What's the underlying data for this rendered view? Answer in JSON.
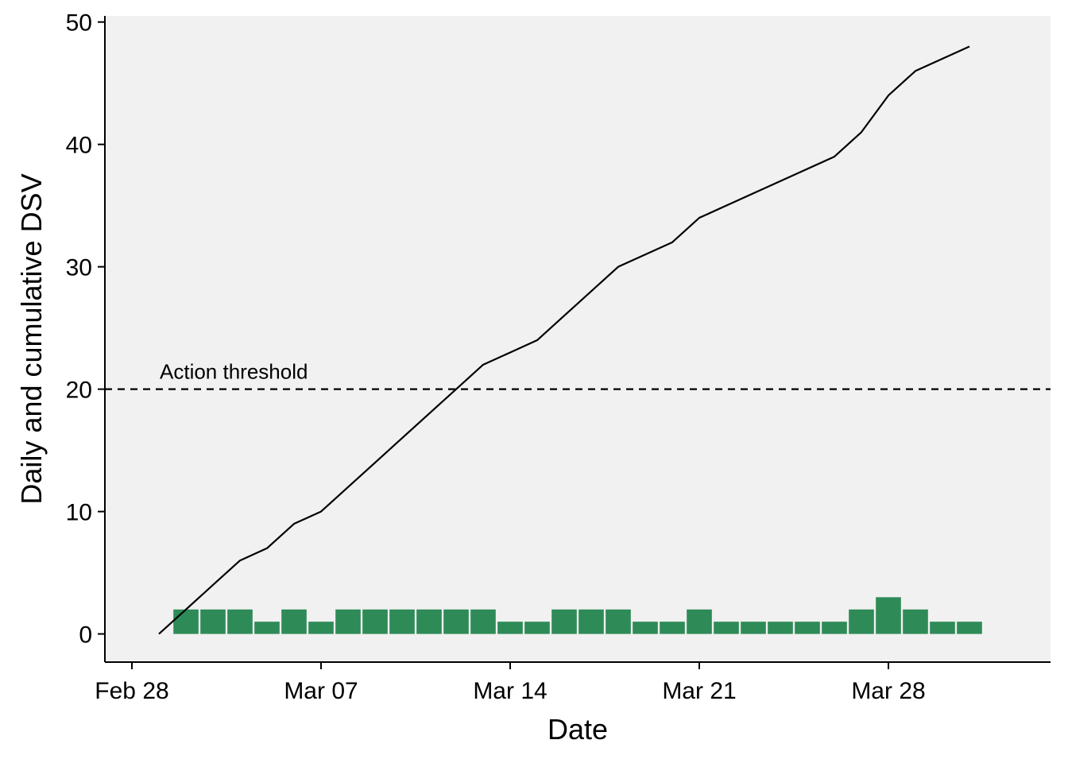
{
  "chart_data": {
    "type": "bar",
    "title": "",
    "xlabel": "Date",
    "ylabel": "Daily and cumulative DSV",
    "x_ticks": [
      {
        "date": "2021-02-28",
        "label": "Feb 28"
      },
      {
        "date": "2021-03-07",
        "label": "Mar 07"
      },
      {
        "date": "2021-03-14",
        "label": "Mar 14"
      },
      {
        "date": "2021-03-21",
        "label": "Mar 21"
      },
      {
        "date": "2021-03-28",
        "label": "Mar 28"
      }
    ],
    "y_ticks": [
      0,
      10,
      20,
      30,
      40,
      50
    ],
    "ylim": [
      -2.3,
      50.5
    ],
    "xlim": [
      "2021-02-27",
      "2021-04-03"
    ],
    "grid": false,
    "background_color": "#f1f1f1",
    "series": [
      {
        "type": "bar",
        "color": "#2e8b57",
        "data": [
          {
            "x": "2021-03-02",
            "y": 2
          },
          {
            "x": "2021-03-03",
            "y": 2
          },
          {
            "x": "2021-03-04",
            "y": 2
          },
          {
            "x": "2021-03-05",
            "y": 1
          },
          {
            "x": "2021-03-06",
            "y": 2
          },
          {
            "x": "2021-03-07",
            "y": 1
          },
          {
            "x": "2021-03-08",
            "y": 2
          },
          {
            "x": "2021-03-09",
            "y": 2
          },
          {
            "x": "2021-03-10",
            "y": 2
          },
          {
            "x": "2021-03-11",
            "y": 2
          },
          {
            "x": "2021-03-12",
            "y": 2
          },
          {
            "x": "2021-03-13",
            "y": 2
          },
          {
            "x": "2021-03-14",
            "y": 1
          },
          {
            "x": "2021-03-15",
            "y": 1
          },
          {
            "x": "2021-03-16",
            "y": 2
          },
          {
            "x": "2021-03-17",
            "y": 2
          },
          {
            "x": "2021-03-18",
            "y": 2
          },
          {
            "x": "2021-03-19",
            "y": 1
          },
          {
            "x": "2021-03-20",
            "y": 1
          },
          {
            "x": "2021-03-21",
            "y": 2
          },
          {
            "x": "2021-03-22",
            "y": 1
          },
          {
            "x": "2021-03-23",
            "y": 1
          },
          {
            "x": "2021-03-24",
            "y": 1
          },
          {
            "x": "2021-03-25",
            "y": 1
          },
          {
            "x": "2021-03-26",
            "y": 1
          },
          {
            "x": "2021-03-27",
            "y": 2
          },
          {
            "x": "2021-03-28",
            "y": 3
          },
          {
            "x": "2021-03-29",
            "y": 2
          },
          {
            "x": "2021-03-30",
            "y": 1
          },
          {
            "x": "2021-03-31",
            "y": 1
          }
        ]
      },
      {
        "type": "line",
        "color": "#000000",
        "data": [
          {
            "x": "2021-03-01",
            "y": 0
          },
          {
            "x": "2021-03-02",
            "y": 2
          },
          {
            "x": "2021-03-03",
            "y": 4
          },
          {
            "x": "2021-03-04",
            "y": 6
          },
          {
            "x": "2021-03-05",
            "y": 7
          },
          {
            "x": "2021-03-06",
            "y": 9
          },
          {
            "x": "2021-03-07",
            "y": 10
          },
          {
            "x": "2021-03-08",
            "y": 12
          },
          {
            "x": "2021-03-09",
            "y": 14
          },
          {
            "x": "2021-03-10",
            "y": 16
          },
          {
            "x": "2021-03-11",
            "y": 18
          },
          {
            "x": "2021-03-12",
            "y": 20
          },
          {
            "x": "2021-03-13",
            "y": 22
          },
          {
            "x": "2021-03-14",
            "y": 23
          },
          {
            "x": "2021-03-15",
            "y": 24
          },
          {
            "x": "2021-03-16",
            "y": 26
          },
          {
            "x": "2021-03-17",
            "y": 28
          },
          {
            "x": "2021-03-18",
            "y": 30
          },
          {
            "x": "2021-03-19",
            "y": 31
          },
          {
            "x": "2021-03-20",
            "y": 32
          },
          {
            "x": "2021-03-21",
            "y": 34
          },
          {
            "x": "2021-03-22",
            "y": 35
          },
          {
            "x": "2021-03-23",
            "y": 36
          },
          {
            "x": "2021-03-24",
            "y": 37
          },
          {
            "x": "2021-03-25",
            "y": 38
          },
          {
            "x": "2021-03-26",
            "y": 39
          },
          {
            "x": "2021-03-27",
            "y": 41
          },
          {
            "x": "2021-03-28",
            "y": 44
          },
          {
            "x": "2021-03-29",
            "y": 46
          },
          {
            "x": "2021-03-30",
            "y": 47
          },
          {
            "x": "2021-03-31",
            "y": 48
          }
        ]
      }
    ],
    "reference_lines": [
      {
        "y": 20,
        "style": "dashed",
        "color": "#000000",
        "label": "Action threshold"
      }
    ]
  }
}
